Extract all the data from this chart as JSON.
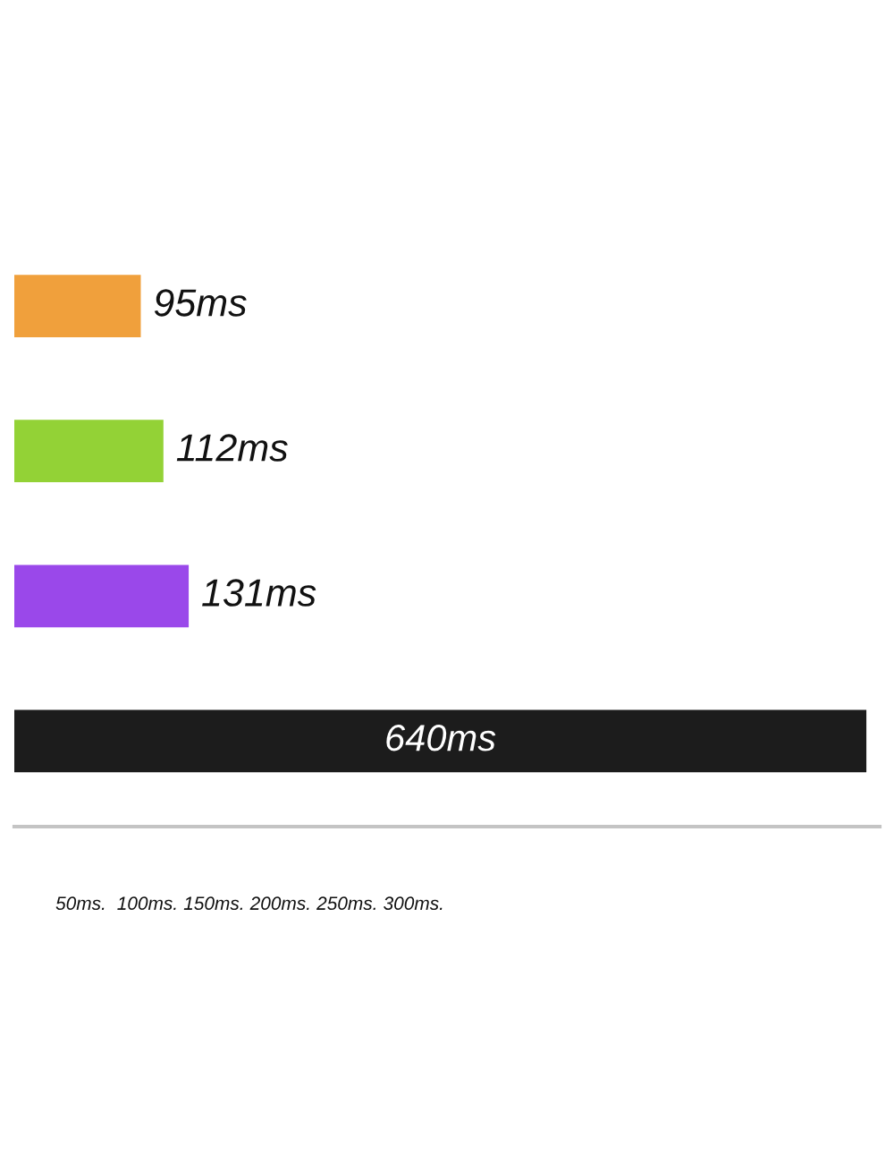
{
  "chart_data": {
    "type": "bar",
    "orientation": "horizontal",
    "categories": [
      null,
      null,
      null,
      null
    ],
    "values": [
      95,
      112,
      131,
      640
    ],
    "colors": [
      "#f0a03c",
      "#93d236",
      "#9a48ea",
      "#1c1c1c"
    ],
    "value_labels": [
      "95ms",
      "112ms",
      "131ms",
      "640ms"
    ],
    "xlim": [
      0,
      650
    ],
    "xticks": [
      {
        "value": 50,
        "label": "50ms."
      },
      {
        "value": 100,
        "label": "100ms."
      },
      {
        "value": 150,
        "label": "150ms."
      },
      {
        "value": 200,
        "label": "200ms."
      },
      {
        "value": 250,
        "label": "250ms."
      },
      {
        "value": 300,
        "label": "300ms."
      }
    ]
  }
}
